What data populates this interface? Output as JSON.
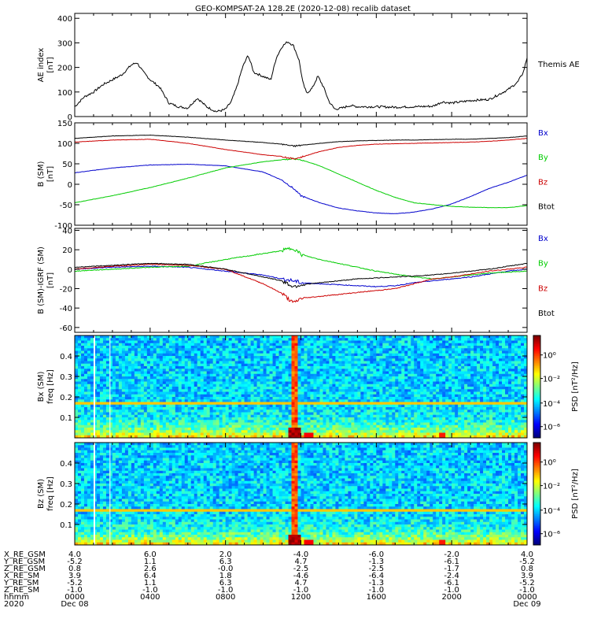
{
  "figure": {
    "title": "GEO-KOMPSAT-2A 128.2E (2020-12-08) recalib dataset"
  },
  "chart_data": [
    {
      "type": "line",
      "id": "ae",
      "ylabel": "AE index",
      "yunit": "[nT]",
      "ylim": [
        0,
        420
      ],
      "yticks": [
        0,
        100,
        200,
        300,
        400
      ],
      "xlim": [
        0,
        24
      ],
      "series": [
        {
          "name": "Themis AE",
          "color": "#000000",
          "x": [
            0,
            0.5,
            1,
            1.5,
            2,
            2.5,
            3,
            3.3,
            3.6,
            4,
            4.5,
            5,
            5.5,
            6,
            6.5,
            7,
            7.5,
            7.8,
            8,
            8.3,
            8.6,
            8.9,
            9.2,
            9.5,
            9.8,
            10.1,
            10.4,
            10.7,
            11,
            11.3,
            11.6,
            11.9,
            12.1,
            12.3,
            12.6,
            12.9,
            13.2,
            13.5,
            13.8,
            14.2,
            14.6,
            15,
            16,
            17,
            18,
            19,
            19.5,
            20,
            21,
            22,
            22.5,
            23,
            23.5,
            23.8,
            24
          ],
          "y": [
            40,
            80,
            100,
            130,
            150,
            170,
            210,
            220,
            185,
            150,
            120,
            55,
            40,
            35,
            75,
            40,
            20,
            25,
            30,
            60,
            120,
            200,
            250,
            180,
            170,
            160,
            150,
            240,
            285,
            305,
            290,
            230,
            140,
            95,
            115,
            165,
            120,
            60,
            30,
            35,
            45,
            40,
            40,
            38,
            40,
            42,
            60,
            55,
            65,
            70,
            90,
            110,
            140,
            180,
            240
          ]
        }
      ]
    },
    {
      "type": "line",
      "id": "bsm",
      "ylabel": "B (SM)",
      "yunit": "[nT]",
      "ylim": [
        -100,
        150
      ],
      "yticks": [
        -100,
        -50,
        0,
        50,
        100,
        150
      ],
      "xlim": [
        0,
        24
      ],
      "series": [
        {
          "name": "Bx",
          "color": "#0000cc",
          "x": [
            0,
            2,
            4,
            6,
            8,
            10,
            11,
            11.6,
            12,
            13,
            14,
            15,
            16,
            17,
            18,
            19,
            20,
            21,
            22,
            23,
            24
          ],
          "y": [
            28,
            40,
            47,
            49,
            45,
            30,
            10,
            -10,
            -28,
            -45,
            -58,
            -65,
            -70,
            -72,
            -68,
            -60,
            -48,
            -30,
            -10,
            5,
            22
          ]
        },
        {
          "name": "By",
          "color": "#00cc00",
          "x": [
            0,
            2,
            4,
            6,
            8,
            10,
            11,
            11.6,
            12,
            13,
            14,
            15,
            16,
            17,
            18,
            19,
            20,
            21,
            22,
            23,
            24
          ],
          "y": [
            -45,
            -28,
            -8,
            15,
            40,
            55,
            60,
            62,
            60,
            45,
            25,
            5,
            -15,
            -32,
            -45,
            -50,
            -54,
            -56,
            -57,
            -57,
            -52
          ]
        },
        {
          "name": "Bz",
          "color": "#cc0000",
          "x": [
            0,
            2,
            4,
            6,
            8,
            10,
            11,
            11.6,
            12,
            13,
            14,
            15,
            16,
            17,
            18,
            19,
            20,
            21,
            22,
            23,
            24
          ],
          "y": [
            103,
            108,
            110,
            100,
            85,
            72,
            68,
            62,
            66,
            80,
            90,
            95,
            98,
            99,
            100,
            101,
            102,
            103,
            105,
            108,
            112
          ]
        },
        {
          "name": "Btot",
          "color": "#000000",
          "x": [
            0,
            2,
            4,
            6,
            8,
            10,
            11,
            11.6,
            12,
            13,
            14,
            15,
            16,
            17,
            18,
            19,
            20,
            21,
            22,
            23,
            24
          ],
          "y": [
            112,
            118,
            120,
            115,
            108,
            102,
            98,
            93,
            95,
            100,
            104,
            106,
            107,
            108,
            108,
            109,
            110,
            110,
            112,
            114,
            118
          ]
        }
      ]
    },
    {
      "type": "line",
      "id": "bres",
      "ylabel": "B (SM)-IGRF (SM)",
      "yunit": "[nT]",
      "ylim": [
        -65,
        42
      ],
      "yticks": [
        -60,
        -40,
        -20,
        0,
        20,
        40
      ],
      "xlim": [
        0,
        24
      ],
      "series": [
        {
          "name": "Bx",
          "color": "#0000cc",
          "x": [
            0,
            2,
            4,
            6,
            8,
            10,
            11,
            11.6,
            12,
            13,
            14,
            15,
            16,
            17,
            18,
            19,
            20,
            21,
            22,
            23,
            24
          ],
          "y": [
            0,
            2,
            3,
            2,
            -2,
            -6,
            -10,
            -12,
            -14,
            -15,
            -16,
            -17,
            -18,
            -17,
            -14,
            -12,
            -10,
            -8,
            -5,
            -2,
            0
          ]
        },
        {
          "name": "By",
          "color": "#00cc00",
          "x": [
            0,
            2,
            4,
            6,
            8,
            10,
            11,
            11.6,
            12,
            13,
            14,
            15,
            16,
            17,
            18,
            19,
            20,
            21,
            22,
            23,
            24
          ],
          "y": [
            -2,
            0,
            2,
            3,
            10,
            16,
            19,
            22,
            15,
            10,
            6,
            2,
            -2,
            -5,
            -8,
            -10,
            -8,
            -6,
            -4,
            -3,
            -2
          ]
        },
        {
          "name": "Bz",
          "color": "#cc0000",
          "x": [
            0,
            2,
            4,
            6,
            8,
            10,
            11,
            11.6,
            12,
            13,
            14,
            15,
            16,
            17,
            18,
            19,
            20,
            21,
            22,
            23,
            24
          ],
          "y": [
            0,
            3,
            5,
            4,
            0,
            -15,
            -25,
            -35,
            -30,
            -28,
            -26,
            -24,
            -22,
            -20,
            -15,
            -10,
            -8,
            -5,
            -2,
            0,
            2
          ]
        },
        {
          "name": "Btot",
          "color": "#000000",
          "x": [
            0,
            2,
            4,
            6,
            8,
            10,
            11,
            11.6,
            12,
            13,
            14,
            15,
            16,
            17,
            18,
            19,
            20,
            21,
            22,
            23,
            24
          ],
          "y": [
            2,
            4,
            6,
            5,
            0,
            -8,
            -12,
            -18,
            -16,
            -14,
            -12,
            -10,
            -9,
            -8,
            -7,
            -6,
            -4,
            -2,
            0,
            3,
            6
          ]
        }
      ]
    },
    {
      "type": "heatmap",
      "id": "bx-spec",
      "ylabel": "Bx (SM)",
      "yunit": "freq [Hz]",
      "ylim": [
        0,
        0.5
      ],
      "yticks": [
        0.1,
        0.2,
        0.3,
        0.4
      ],
      "xlim": [
        0,
        24
      ],
      "colorbar_label": "PSD [nT²/Hz]",
      "colorbar_ticks": [
        "10⁰",
        "10⁻²",
        "10⁻⁴",
        "10⁻⁶"
      ]
    },
    {
      "type": "heatmap",
      "id": "bz-spec",
      "ylabel": "Bz (SM)",
      "yunit": "freq [Hz]",
      "ylim": [
        0,
        0.5
      ],
      "yticks": [
        0.1,
        0.2,
        0.3,
        0.4
      ],
      "xlim": [
        0,
        24
      ],
      "colorbar_label": "PSD [nT²/Hz]",
      "colorbar_ticks": [
        "10⁰",
        "10⁻²",
        "10⁻⁴",
        "10⁻⁶"
      ]
    }
  ],
  "ephemeris": {
    "rows": [
      {
        "label": "X_RE_GSM",
        "values": [
          "4.0",
          "6.0",
          "2.0",
          "-4.0",
          "-6.0",
          "-2.0",
          "4.0"
        ]
      },
      {
        "label": "Y_RE_GSM",
        "values": [
          "-5.2",
          "1.1",
          "6.3",
          "4.7",
          "-1.3",
          "-6.1",
          "-5.2"
        ]
      },
      {
        "label": "Z_RE_GSM",
        "values": [
          "0.8",
          "2.6",
          "-0.0",
          "-2.5",
          "-2.5",
          "-1.7",
          "0.8"
        ]
      },
      {
        "label": "X_RE_SM",
        "values": [
          "3.9",
          "6.4",
          "1.8",
          "-4.6",
          "-6.4",
          "-2.4",
          "3.9"
        ]
      },
      {
        "label": "Y_RE_SM",
        "values": [
          "-5.2",
          "1.1",
          "6.3",
          "4.7",
          "-1.3",
          "-6.1",
          "-5.2"
        ]
      },
      {
        "label": "Z_RE_SM",
        "values": [
          "-1.0",
          "-1.0",
          "-1.0",
          "-1.0",
          "-1.0",
          "-1.0",
          "-1.0"
        ]
      },
      {
        "label": "hhmm",
        "values": [
          "0000",
          "0400",
          "0800",
          "1200",
          "1600",
          "2000",
          "0000"
        ]
      }
    ],
    "year": "2020",
    "date_start": "Dec 08",
    "date_end": "Dec 09"
  }
}
